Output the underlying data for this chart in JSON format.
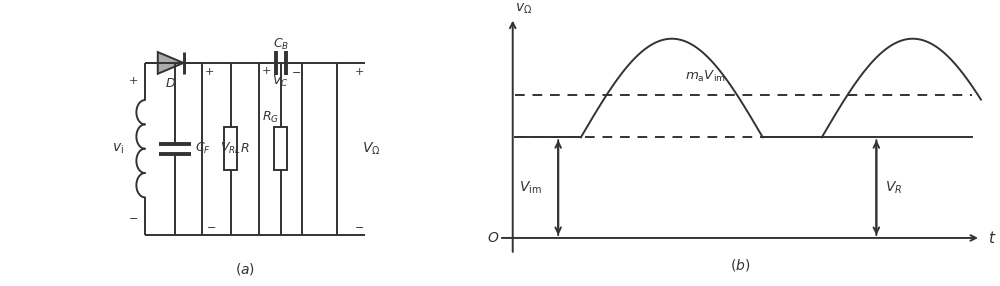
{
  "fig_width": 10.0,
  "fig_height": 2.86,
  "dpi": 100,
  "bg_color": "#ffffff",
  "line_color": "#333333",
  "lw": 1.4,
  "graph": {
    "upper_dashed": 0.62,
    "lower_dashed": 0.42,
    "lower_solid": 0.42,
    "upper_solid": 0.62,
    "wave_base": 0.62,
    "wave_amp": 0.3,
    "Vim_level": 0.42,
    "VR_level": 0.42,
    "text_maVim": "$m_{\\mathrm{a}}V_{\\mathrm{im}}$",
    "text_Vim": "$V_{\\mathrm{im}}$",
    "text_VR": "$V_R$"
  }
}
